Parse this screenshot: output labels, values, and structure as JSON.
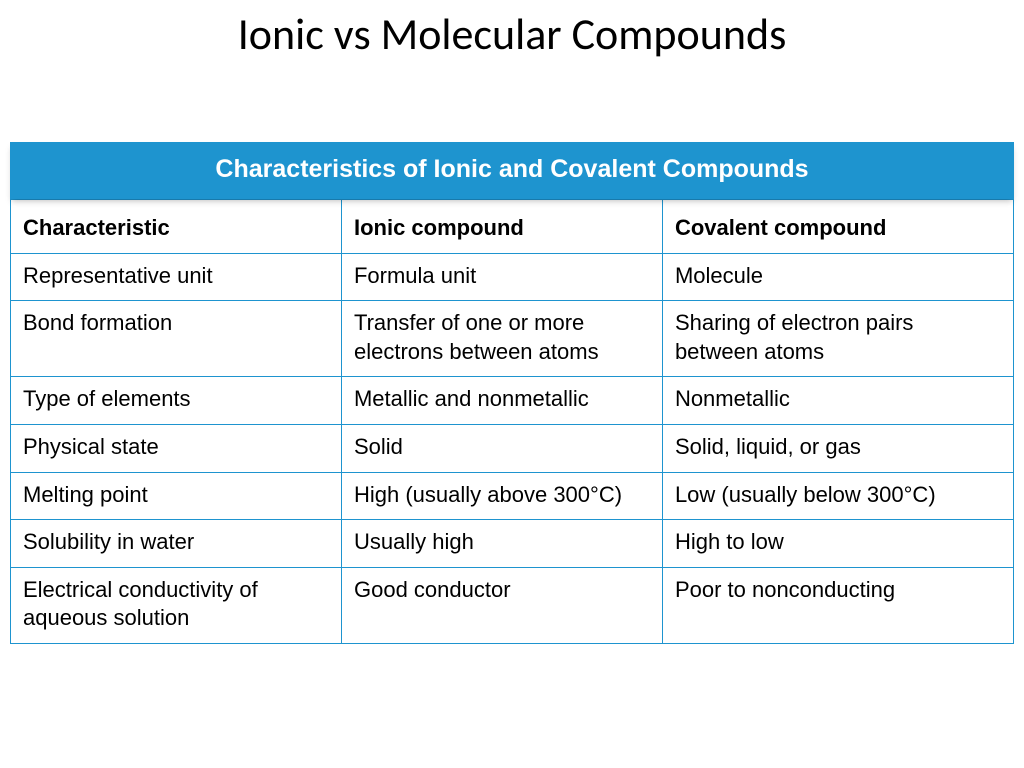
{
  "slide": {
    "title": "Ionic vs Molecular Compounds"
  },
  "table": {
    "type": "table",
    "title": "Characteristics of Ionic and Covalent Compounds",
    "header_bg": "#1e94cf",
    "header_fg": "#ffffff",
    "border_color": "#1e94cf",
    "cell_fontsize": 22,
    "title_fontsize": 25,
    "columns": [
      {
        "label": "Characteristic",
        "width_pct": 33
      },
      {
        "label": "Ionic compound",
        "width_pct": 32
      },
      {
        "label": "Covalent compound",
        "width_pct": 35
      }
    ],
    "rows": [
      [
        "Representative unit",
        "Formula unit",
        "Molecule"
      ],
      [
        "Bond formation",
        "Transfer of one or more electrons between atoms",
        "Sharing of electron pairs between atoms"
      ],
      [
        "Type of elements",
        "Metallic and nonmetallic",
        "Nonmetallic"
      ],
      [
        "Physical state",
        "Solid",
        "Solid, liquid, or gas"
      ],
      [
        "Melting point",
        "High (usually above 300°C)",
        "Low (usually below 300°C)"
      ],
      [
        "Solubility in water",
        "Usually high",
        "High to low"
      ],
      [
        "Electrical conductivity of aqueous solution",
        "Good conductor",
        "Poor to nonconducting"
      ]
    ]
  }
}
